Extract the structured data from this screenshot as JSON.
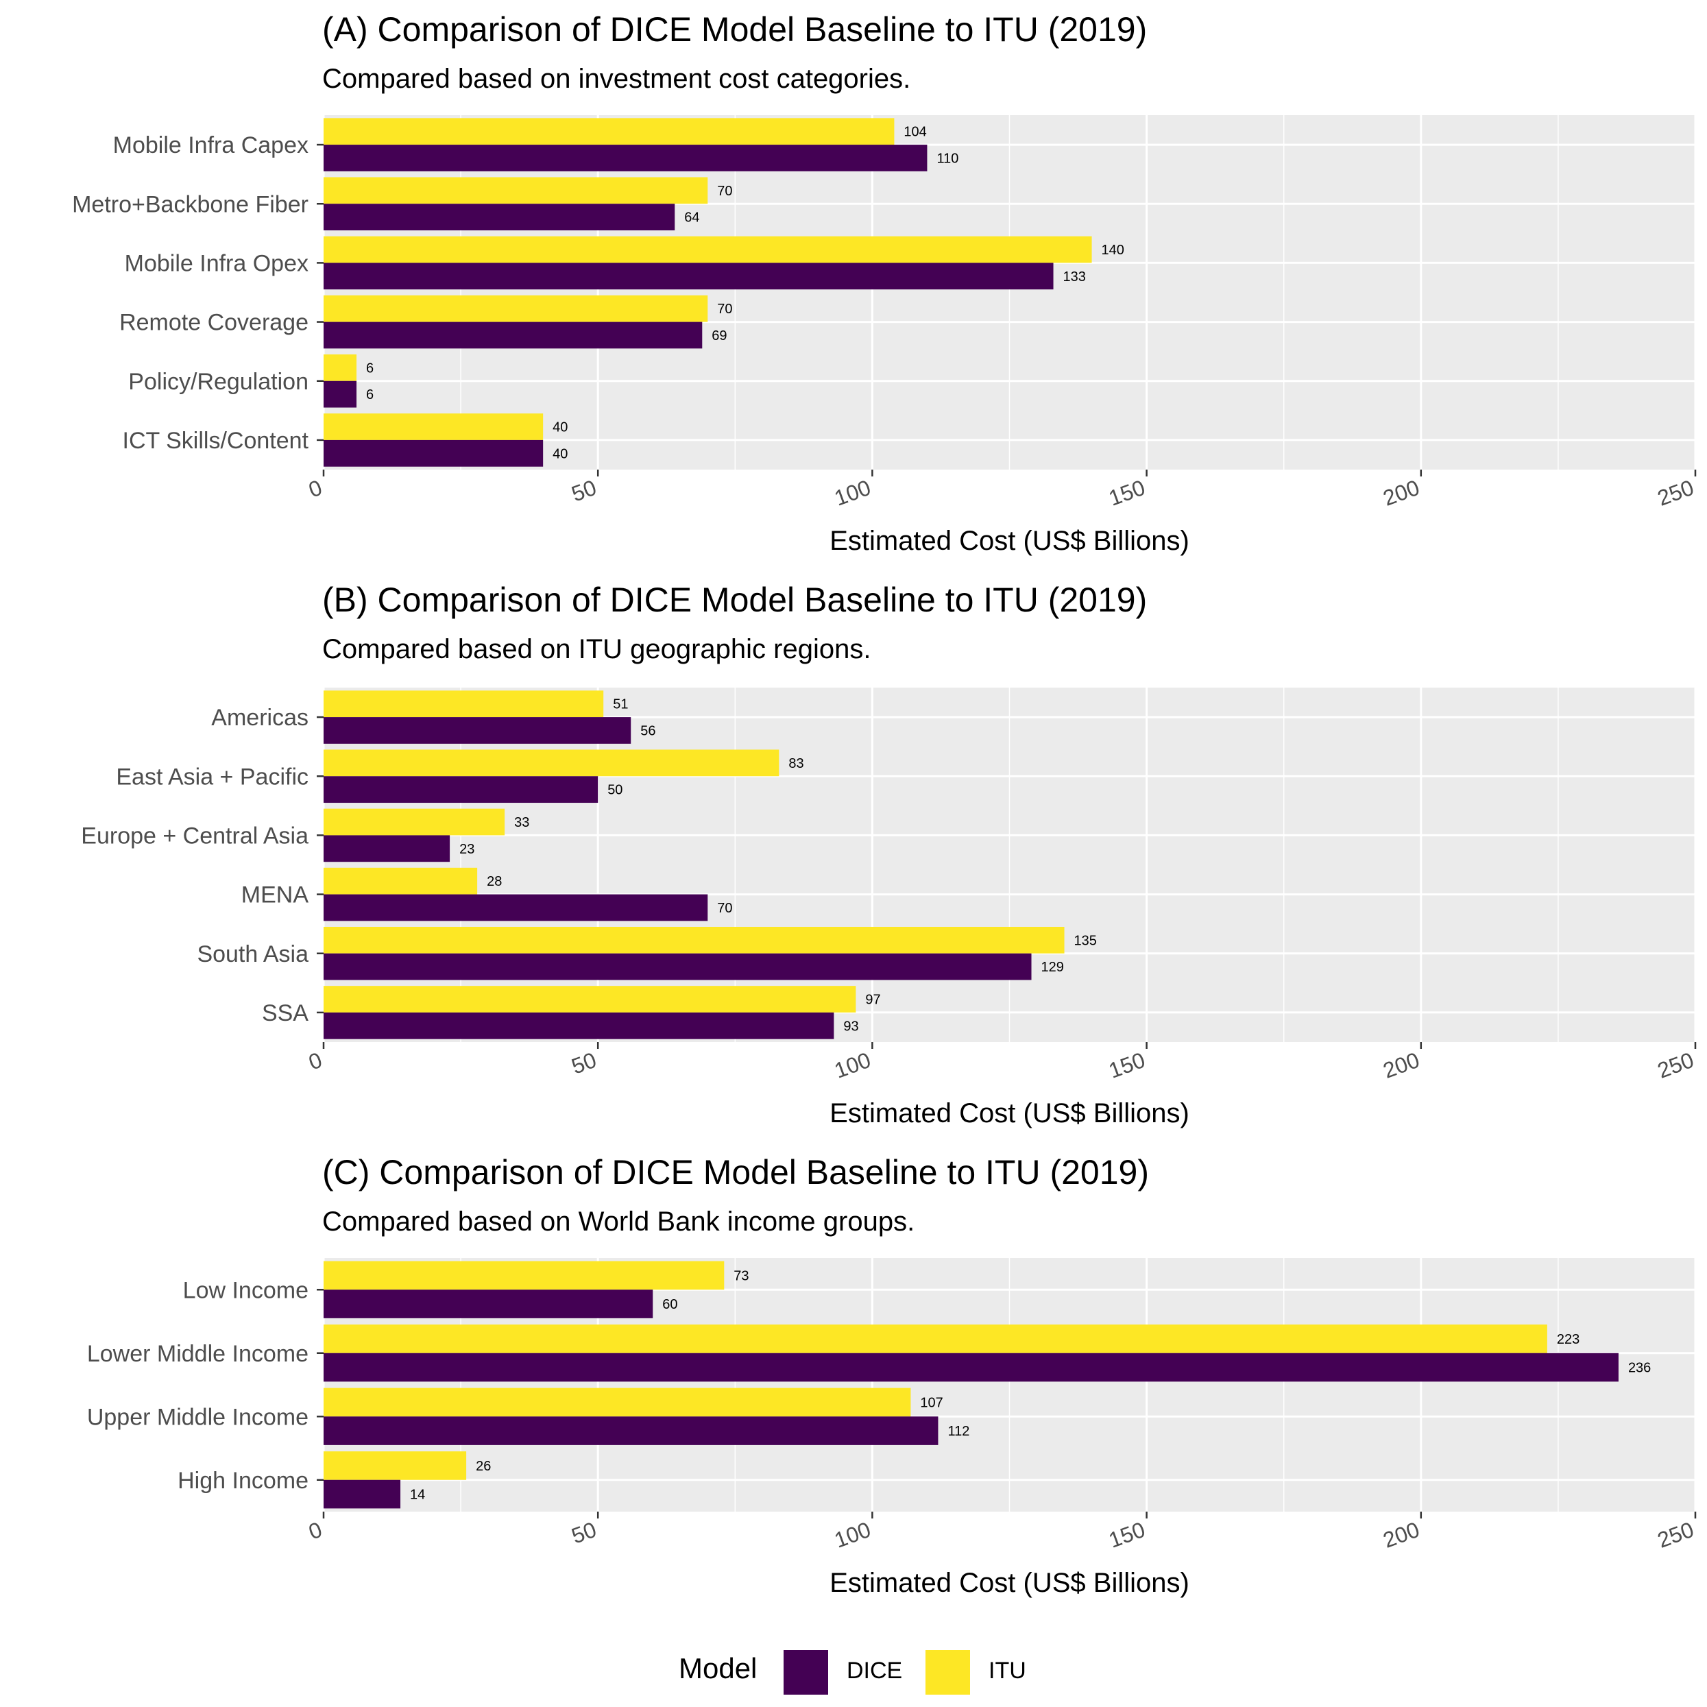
{
  "legend": {
    "title": "Model",
    "entries": [
      {
        "name": "DICE",
        "color": "#440154"
      },
      {
        "name": "ITU",
        "color": "#FDE725"
      }
    ]
  },
  "colors": {
    "panel_background": "#EBEBEB",
    "grid": "#FFFFFF",
    "dice": "#440154",
    "itu": "#FDE725"
  },
  "chart_data": [
    {
      "type": "bar",
      "orientation": "horizontal",
      "title": "(A) Comparison of DICE Model Baseline to ITU (2019)",
      "subtitle": "Compared based on investment cost categories.",
      "xlabel": "Estimated Cost (US$ Billions)",
      "ylabel": "",
      "xlim": [
        0,
        250
      ],
      "xticks": [
        0,
        50,
        100,
        150,
        200,
        250
      ],
      "grid": true,
      "categories": [
        "Mobile Infra Capex",
        "Metro+Backbone Fiber",
        "Mobile Infra Opex",
        "Remote Coverage",
        "Policy/Regulation",
        "ICT Skills/Content"
      ],
      "series": [
        {
          "name": "ITU",
          "values": [
            104,
            70,
            140,
            70,
            6,
            40
          ]
        },
        {
          "name": "DICE",
          "values": [
            110,
            64,
            133,
            69,
            6,
            40
          ]
        }
      ]
    },
    {
      "type": "bar",
      "orientation": "horizontal",
      "title": "(B) Comparison of DICE Model Baseline to ITU (2019)",
      "subtitle": "Compared based on ITU geographic regions.",
      "xlabel": "Estimated Cost (US$ Billions)",
      "ylabel": "",
      "xlim": [
        0,
        250
      ],
      "xticks": [
        0,
        50,
        100,
        150,
        200,
        250
      ],
      "grid": true,
      "categories": [
        "Americas",
        "East Asia + Pacific",
        "Europe + Central Asia",
        "MENA",
        "South Asia",
        "SSA"
      ],
      "series": [
        {
          "name": "ITU",
          "values": [
            51,
            83,
            33,
            28,
            135,
            97
          ]
        },
        {
          "name": "DICE",
          "values": [
            56,
            50,
            23,
            70,
            129,
            93
          ]
        }
      ]
    },
    {
      "type": "bar",
      "orientation": "horizontal",
      "title": "(C) Comparison of DICE Model Baseline to ITU (2019)",
      "subtitle": "Compared based on World Bank income groups.",
      "xlabel": "Estimated Cost (US$ Billions)",
      "ylabel": "",
      "xlim": [
        0,
        250
      ],
      "xticks": [
        0,
        50,
        100,
        150,
        200,
        250
      ],
      "grid": true,
      "categories": [
        "Low Income",
        "Lower Middle Income",
        "Upper Middle Income",
        "High Income"
      ],
      "series": [
        {
          "name": "ITU",
          "values": [
            73,
            223,
            107,
            26
          ]
        },
        {
          "name": "DICE",
          "values": [
            60,
            236,
            112,
            14
          ]
        }
      ]
    }
  ]
}
